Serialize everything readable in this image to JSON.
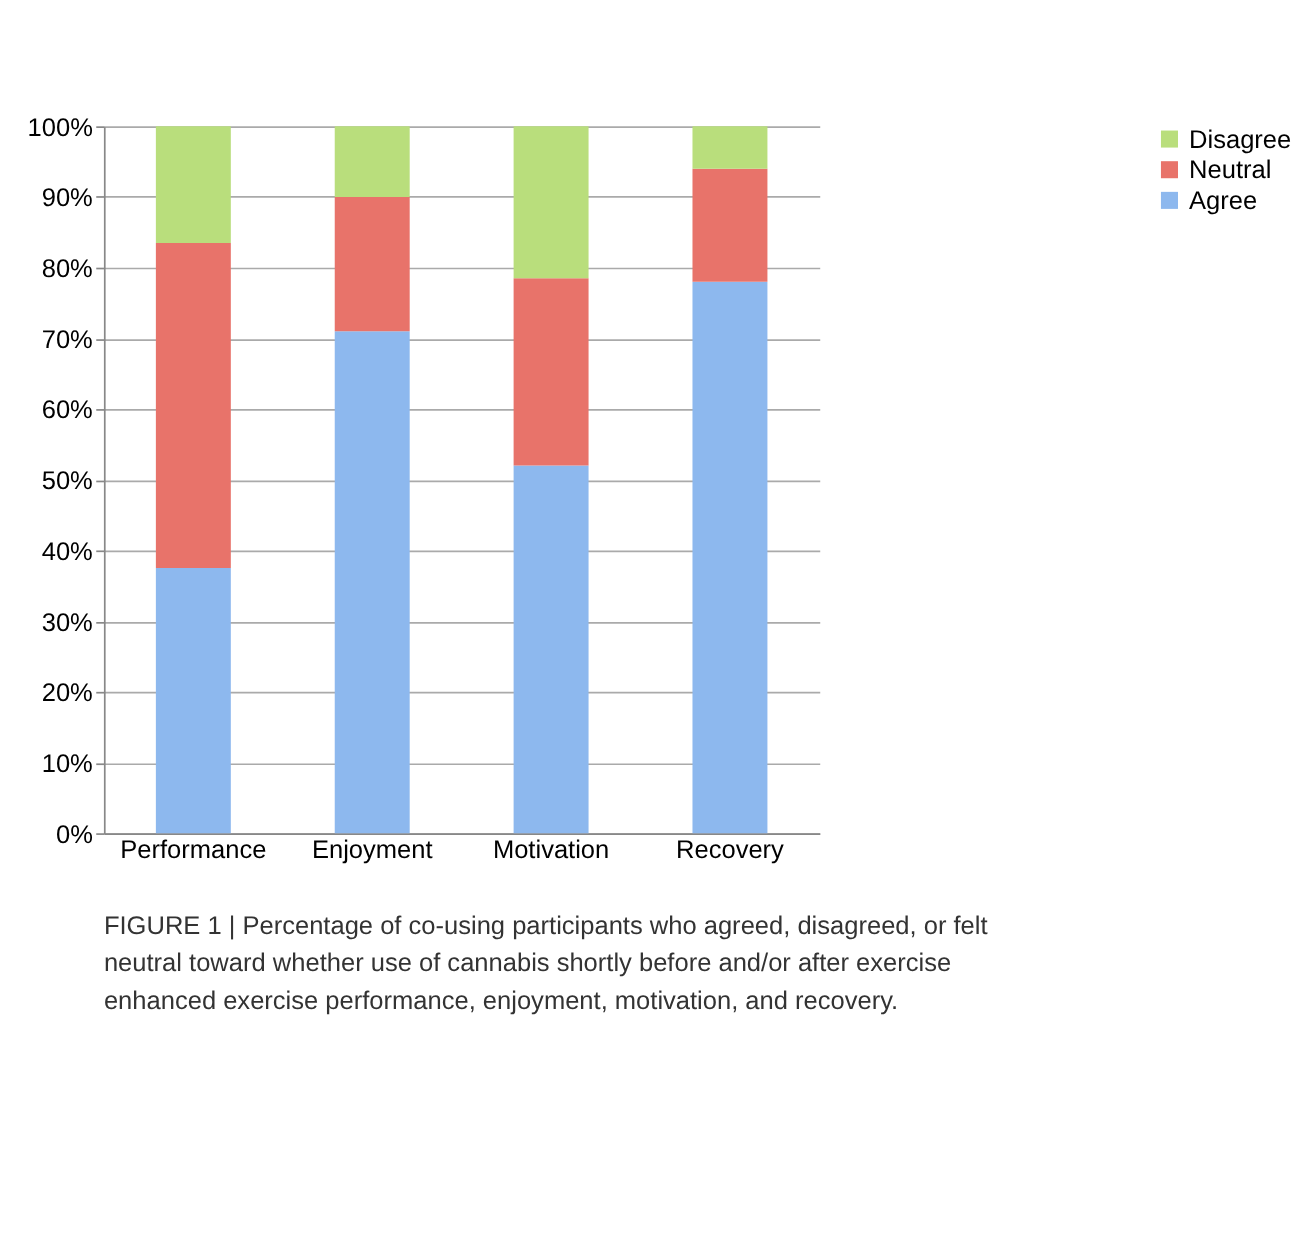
{
  "chart_data": {
    "type": "bar",
    "stacked": true,
    "categories": [
      "Performance",
      "Enjoyment",
      "Motivation",
      "Recovery"
    ],
    "series": [
      {
        "name": "Agree",
        "color": "#8db8ee",
        "values": [
          37.5,
          71,
          52,
          78
        ]
      },
      {
        "name": "Neutral",
        "color": "#e8736a",
        "values": [
          46,
          19,
          26.5,
          16
        ]
      },
      {
        "name": "Disagree",
        "color": "#b9de7c",
        "values": [
          16.5,
          10,
          21.5,
          6
        ]
      }
    ],
    "ylim": [
      0,
      100
    ],
    "yticks": [
      {
        "value": 0,
        "label": "0%"
      },
      {
        "value": 10,
        "label": "10%"
      },
      {
        "value": 20,
        "label": "20%"
      },
      {
        "value": 30,
        "label": "30%"
      },
      {
        "value": 40,
        "label": "40%"
      },
      {
        "value": 50,
        "label": "50%"
      },
      {
        "value": 60,
        "label": "60%"
      },
      {
        "value": 70,
        "label": "70%"
      },
      {
        "value": 80,
        "label": "80%"
      },
      {
        "value": 90,
        "label": "90%"
      },
      {
        "value": 100,
        "label": "100%"
      }
    ],
    "grid": "y",
    "legend": "right",
    "annotations": [
      "FIGURE 1 | Percentage of co-using participants who agreed, disagreed, or felt neutral toward whether use of cannabis shortly before and/or after exercise enhanced exercise performance, enjoyment, motivation, and recovery."
    ]
  }
}
